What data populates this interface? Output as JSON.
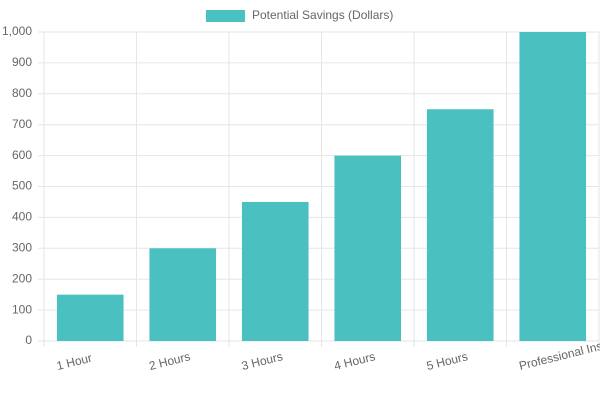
{
  "chart_data": {
    "type": "bar",
    "categories": [
      "1 Hour",
      "2 Hours",
      "3 Hours",
      "4 Hours",
      "5 Hours",
      "Professional Installation"
    ],
    "series": [
      {
        "name": "Potential Savings (Dollars)",
        "color": "#4bc0c0",
        "values": [
          150,
          300,
          450,
          600,
          750,
          1000
        ]
      }
    ],
    "ylim": [
      0,
      1000
    ],
    "yticks": [
      0,
      100,
      200,
      300,
      400,
      500,
      600,
      700,
      800,
      900,
      {
        "value": 1000,
        "label": "1,000"
      }
    ],
    "grid": true
  }
}
